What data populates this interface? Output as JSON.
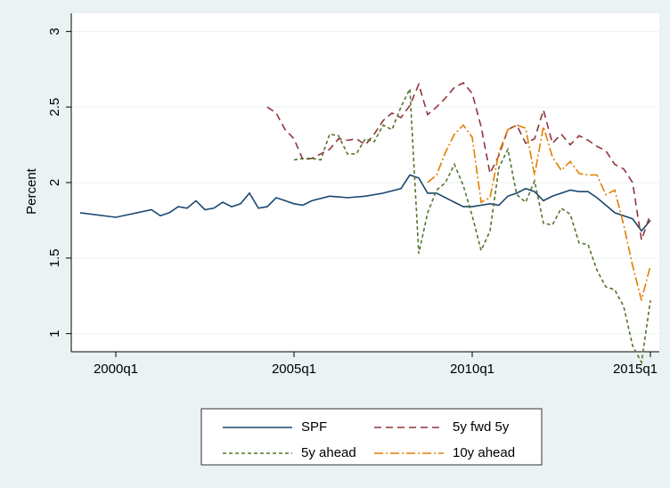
{
  "chart_data": {
    "type": "line",
    "ylabel": "Percent",
    "xlim": [
      1998.75,
      2015.25
    ],
    "ylim": [
      0.88,
      3.12
    ],
    "xticks": [
      {
        "value": 2000,
        "label": "2000q1"
      },
      {
        "value": 2005,
        "label": "2005q1"
      },
      {
        "value": 2010,
        "label": "2010q1"
      },
      {
        "value": 2015,
        "label": "2015q1"
      }
    ],
    "yticks": [
      1,
      1.5,
      2,
      2.5,
      3
    ],
    "grid": true,
    "series": [
      {
        "name": "SPF",
        "color": "#1a476f",
        "dash": "none",
        "x": [
          1999,
          2000,
          2001,
          2001.25,
          2001.5,
          2001.75,
          2002,
          2002.25,
          2002.5,
          2002.75,
          2003,
          2003.25,
          2003.5,
          2003.75,
          2004,
          2004.25,
          2004.5,
          2004.75,
          2005,
          2005.25,
          2005.5,
          2006,
          2006.5,
          2007,
          2007.5,
          2008,
          2008.25,
          2008.5,
          2008.75,
          2009,
          2009.5,
          2009.75,
          2010,
          2010.5,
          2010.75,
          2011,
          2011.25,
          2011.5,
          2011.75,
          2012,
          2012.25,
          2012.75,
          2013,
          2013.25,
          2013.5,
          2013.75,
          2014,
          2014.5,
          2014.75,
          2015
        ],
        "values": [
          1.8,
          1.77,
          1.82,
          1.78,
          1.8,
          1.84,
          1.83,
          1.88,
          1.82,
          1.83,
          1.87,
          1.84,
          1.86,
          1.93,
          1.83,
          1.84,
          1.9,
          1.88,
          1.86,
          1.85,
          1.88,
          1.91,
          1.9,
          1.91,
          1.93,
          1.96,
          2.05,
          2.03,
          1.93,
          1.93,
          1.87,
          1.84,
          1.84,
          1.86,
          1.85,
          1.91,
          1.93,
          1.96,
          1.94,
          1.88,
          1.91,
          1.95,
          1.94,
          1.94,
          1.9,
          1.85,
          1.8,
          1.76,
          1.68,
          1.75
        ]
      },
      {
        "name": "5y fwd 5y",
        "color": "#90353b",
        "dash": "8,5",
        "x": [
          2004.25,
          2004.5,
          2004.75,
          2005,
          2005.25,
          2005.5,
          2005.75,
          2006,
          2006.25,
          2006.5,
          2006.75,
          2007,
          2007.25,
          2007.5,
          2007.75,
          2008,
          2008.25,
          2008.5,
          2008.75,
          2009,
          2009.25,
          2009.5,
          2009.75,
          2010,
          2010.25,
          2010.5,
          2010.75,
          2011,
          2011.25,
          2011.5,
          2011.75,
          2012,
          2012.25,
          2012.5,
          2012.75,
          2013,
          2013.25,
          2013.5,
          2013.75,
          2014,
          2014.25,
          2014.5,
          2014.75,
          2015
        ],
        "values": [
          2.5,
          2.46,
          2.35,
          2.29,
          2.15,
          2.16,
          2.19,
          2.22,
          2.29,
          2.28,
          2.29,
          2.25,
          2.32,
          2.41,
          2.46,
          2.43,
          2.51,
          2.65,
          2.45,
          2.5,
          2.56,
          2.63,
          2.66,
          2.59,
          2.37,
          2.06,
          2.18,
          2.35,
          2.38,
          2.26,
          2.29,
          2.48,
          2.26,
          2.32,
          2.25,
          2.31,
          2.28,
          2.24,
          2.21,
          2.12,
          2.09,
          2.0,
          1.62,
          1.79
        ]
      },
      {
        "name": "5y ahead",
        "color": "#55752f",
        "dash": "4,3",
        "x": [
          2005,
          2005.25,
          2005.5,
          2005.75,
          2006,
          2006.25,
          2006.5,
          2006.75,
          2007,
          2007.25,
          2007.5,
          2007.75,
          2008,
          2008.25,
          2008.5,
          2008.75,
          2009,
          2009.25,
          2009.5,
          2009.75,
          2010,
          2010.25,
          2010.5,
          2010.75,
          2011,
          2011.25,
          2011.5,
          2011.75,
          2012,
          2012.25,
          2012.5,
          2012.75,
          2013,
          2013.25,
          2013.5,
          2013.75,
          2014,
          2014.25,
          2014.5,
          2014.75,
          2015
        ],
        "values": [
          2.15,
          2.16,
          2.16,
          2.15,
          2.32,
          2.31,
          2.19,
          2.19,
          2.29,
          2.27,
          2.38,
          2.35,
          2.5,
          2.62,
          1.53,
          1.8,
          1.95,
          2.0,
          2.12,
          1.98,
          1.78,
          1.55,
          1.68,
          2.1,
          2.22,
          1.92,
          1.87,
          2.01,
          1.73,
          1.72,
          1.83,
          1.79,
          1.6,
          1.59,
          1.42,
          1.31,
          1.29,
          1.18,
          0.92,
          0.81,
          1.22
        ]
      },
      {
        "name": "10y ahead",
        "color": "#e37e00",
        "dash": "10,3,2,3",
        "x": [
          2008.75,
          2009,
          2009.25,
          2009.5,
          2009.75,
          2010,
          2010.25,
          2010.5,
          2010.75,
          2011,
          2011.25,
          2011.5,
          2011.75,
          2012,
          2012.25,
          2012.5,
          2012.75,
          2013,
          2013.25,
          2013.5,
          2013.75,
          2014,
          2014.25,
          2014.5,
          2014.75,
          2015
        ],
        "values": [
          2.0,
          2.05,
          2.2,
          2.32,
          2.38,
          2.3,
          1.87,
          1.9,
          2.2,
          2.35,
          2.38,
          2.36,
          2.05,
          2.37,
          2.17,
          2.08,
          2.14,
          2.06,
          2.05,
          2.05,
          1.92,
          1.95,
          1.72,
          1.45,
          1.22,
          1.45
        ]
      }
    ]
  }
}
